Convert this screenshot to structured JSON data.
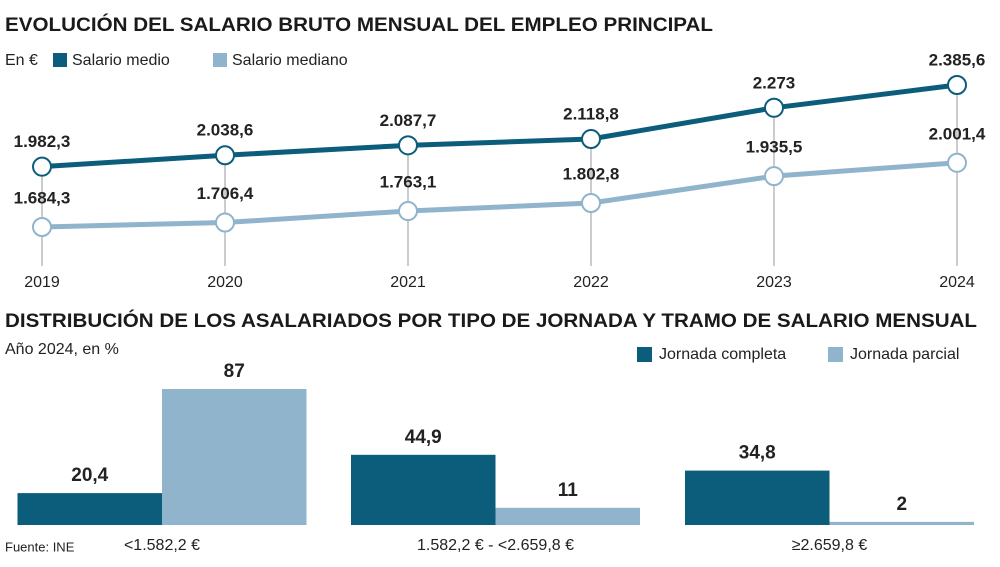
{
  "chart_data": [
    {
      "type": "line",
      "title": "EVOLUCIÓN DEL SALARIO BRUTO MENSUAL DEL EMPLEO PRINCIPAL",
      "subtitle": "En €",
      "categories": [
        "2019",
        "2020",
        "2021",
        "2022",
        "2023",
        "2024"
      ],
      "series": [
        {
          "name": "Salario medio",
          "color": "#0b5d7b",
          "values": [
            1982.3,
            2038.6,
            2087.7,
            2118.8,
            2273,
            2385.6
          ],
          "value_labels": [
            "1.982,3",
            "2.038,6",
            "2.087,7",
            "2.118,8",
            "2.273",
            "2.385,6"
          ]
        },
        {
          "name": "Salario mediano",
          "color": "#8fb4cc",
          "values": [
            1684.3,
            1706.4,
            1763.1,
            1802.8,
            1935.5,
            2001.4
          ],
          "value_labels": [
            "1.684,3",
            "1.706,4",
            "1.763,1",
            "1.802,8",
            "1.935,5",
            "2.001,4"
          ]
        }
      ]
    },
    {
      "type": "bar",
      "title": "DISTRIBUCIÓN DE LOS ASALARIADOS POR TIPO DE JORNADA Y TRAMO DE SALARIO MENSUAL",
      "subtitle": "Año 2024, en %",
      "categories": [
        "<1.582,2 €",
        "1.582,2 € - <2.659,8 €",
        "≥2.659,8 €"
      ],
      "series": [
        {
          "name": "Jornada completa",
          "color": "#0b5d7b",
          "values": [
            20.4,
            44.9,
            34.8
          ],
          "value_labels": [
            "20,4",
            "44,9",
            "34,8"
          ]
        },
        {
          "name": "Jornada parcial",
          "color": "#8fb4cc",
          "values": [
            87,
            11,
            2
          ]
        }
      ],
      "source": "Fuente: INE"
    }
  ]
}
